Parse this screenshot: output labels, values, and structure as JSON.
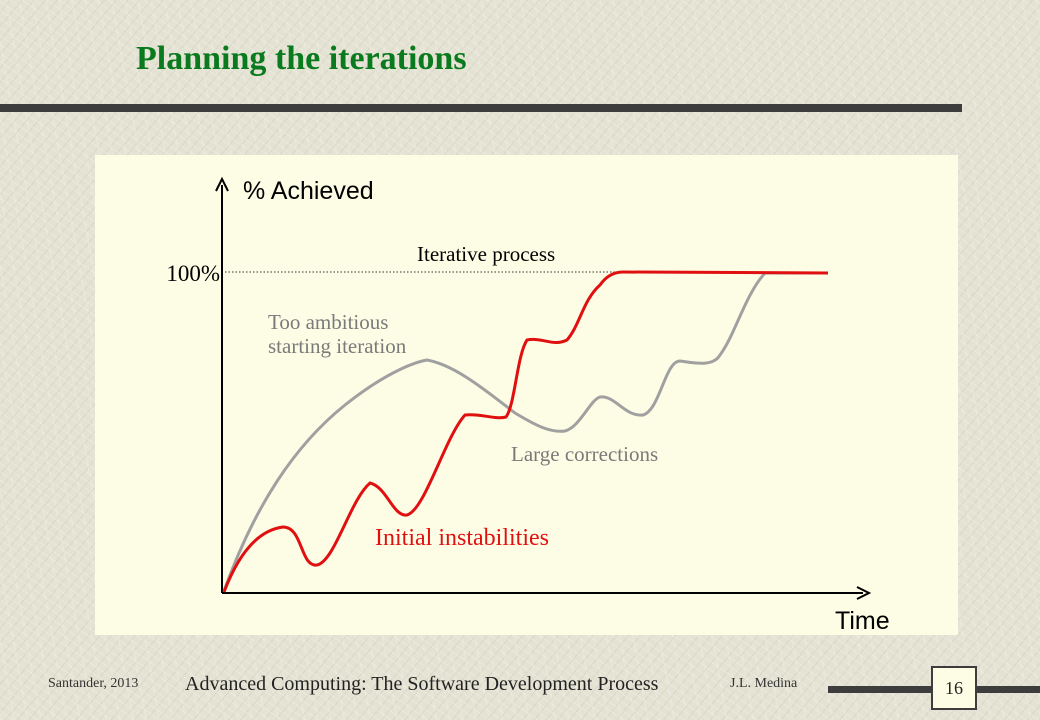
{
  "slide": {
    "title": "Planning the iterations",
    "page_number": "16"
  },
  "diagram": {
    "y_axis_label": "% Achieved",
    "x_axis_label": "Time",
    "target_label": "100%",
    "labels": {
      "iterative_process": "Iterative process",
      "too_ambitious_line1": "Too ambitious",
      "too_ambitious_line2": "starting iteration",
      "large_corrections": "Large corrections",
      "initial_instabilities": "Initial instabilities"
    },
    "colors": {
      "red_curve": "#e01010",
      "gray_curve": "#a0a0a0",
      "axis": "#000000"
    }
  },
  "footer": {
    "left": "Santander, 2013",
    "center": "Advanced Computing: The Software Development Process",
    "right": "J.L. Medina"
  }
}
